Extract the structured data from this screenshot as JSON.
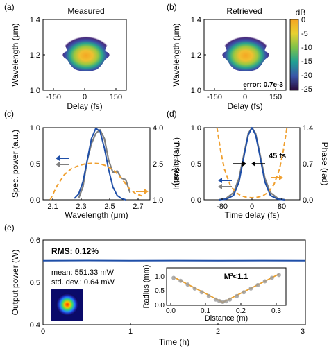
{
  "colors": {
    "blue": "#1f4fa8",
    "gray": "#808080",
    "orange": "#f0a030",
    "orange_line": "#e9a030"
  },
  "chart_data": [
    {
      "panel": "(a)",
      "type": "heatmap",
      "title": "Measured",
      "xlabel": "Delay (fs)",
      "ylabel": "Wavelength (μm)",
      "xlim": [
        -200,
        200
      ],
      "ylim": [
        1.0,
        1.4
      ],
      "xticks": [
        "-150",
        "0",
        "150"
      ],
      "yticks": [
        "1.0",
        "1.2",
        "1.4"
      ]
    },
    {
      "panel": "(b)",
      "type": "heatmap",
      "title": "Retrieved",
      "xlabel": "Delay (fs)",
      "ylabel": "Wavelength (μm)",
      "xlim": [
        -200,
        200
      ],
      "ylim": [
        1.0,
        1.4
      ],
      "xticks": [
        "-150",
        "0",
        "150"
      ],
      "yticks": [
        "1.0",
        "1.2",
        "1.4"
      ],
      "annotation": "error: 0.7e-3",
      "colorbar": {
        "label": "dB",
        "ticks": [
          "0",
          "-5",
          "-10",
          "-15",
          "-20",
          "-25"
        ],
        "range": [
          -25,
          0
        ]
      }
    },
    {
      "panel": "(c)",
      "type": "line",
      "xlabel": "Wavelength (μm)",
      "ylabel": "Spec. power (a.u.)",
      "ylabel_right": "Phase (rad)",
      "xlim": [
        2.0,
        2.75
      ],
      "ylim": [
        0,
        1.0
      ],
      "ylim_right": [
        1.0,
        4.0
      ],
      "xticks": [
        "2.1",
        "2.3",
        "2.5",
        "2.7"
      ],
      "yticks": [
        "0.0",
        "0.5",
        "1.0"
      ],
      "yticks_right": [
        "1.0",
        "2.5",
        "4.0"
      ],
      "series": [
        {
          "color": "gray",
          "axis": "left",
          "x": [
            2.25,
            2.28,
            2.31,
            2.34,
            2.37,
            2.4,
            2.43,
            2.46,
            2.49,
            2.52,
            2.55,
            2.58,
            2.61
          ],
          "y": [
            0.02,
            0.18,
            0.55,
            0.78,
            0.92,
            0.97,
            0.85,
            0.55,
            0.38,
            0.4,
            0.3,
            0.28,
            0.1
          ]
        },
        {
          "color": "blue",
          "axis": "left",
          "x": [
            2.22,
            2.25,
            2.28,
            2.31,
            2.34,
            2.37,
            2.4,
            2.43,
            2.46,
            2.49,
            2.52,
            2.55,
            2.58
          ],
          "y": [
            0.02,
            0.08,
            0.25,
            0.55,
            0.85,
            0.99,
            0.95,
            0.72,
            0.42,
            0.18,
            0.06,
            0.02,
            0.0
          ]
        },
        {
          "color": "orange",
          "axis": "right",
          "dashed": true,
          "x": [
            2.05,
            2.1,
            2.15,
            2.2,
            2.25,
            2.3,
            2.35,
            2.4,
            2.45,
            2.5,
            2.55,
            2.6,
            2.65,
            2.7
          ],
          "y": [
            1.0,
            1.6,
            2.05,
            2.3,
            2.42,
            2.5,
            2.52,
            2.5,
            2.4,
            2.2,
            1.9,
            1.5,
            1.25,
            1.15
          ]
        }
      ]
    },
    {
      "panel": "(d)",
      "type": "line",
      "xlabel": "Time delay (fs)",
      "ylabel": "Intensity (a.u.)",
      "ylabel_right": "Phase (rad)",
      "xlim": [
        -130,
        130
      ],
      "ylim": [
        0,
        1.0
      ],
      "ylim_right": [
        0,
        1.4
      ],
      "xticks": [
        "-80",
        "0",
        "80"
      ],
      "yticks": [
        "0.0",
        "0.5",
        "1.0"
      ],
      "yticks_right": [
        "0.0",
        "0.7",
        "1.4"
      ],
      "annotation": "45 fs",
      "series": [
        {
          "color": "gray",
          "axis": "left",
          "x": [
            -90,
            -70,
            -50,
            -35,
            -20,
            -10,
            0,
            10,
            20,
            35,
            50,
            70,
            90
          ],
          "y": [
            0.0,
            0.02,
            0.1,
            0.3,
            0.68,
            0.92,
            1.0,
            0.92,
            0.68,
            0.3,
            0.1,
            0.02,
            0.0
          ]
        },
        {
          "color": "blue",
          "axis": "left",
          "x": [
            -90,
            -70,
            -50,
            -35,
            -20,
            -10,
            0,
            10,
            20,
            35,
            50,
            70,
            90
          ],
          "y": [
            0.0,
            0.01,
            0.06,
            0.25,
            0.65,
            0.9,
            1.0,
            0.9,
            0.65,
            0.25,
            0.06,
            0.01,
            0.0
          ]
        },
        {
          "color": "orange",
          "axis": "right",
          "dashed": true,
          "x": [
            -95,
            -85,
            -75,
            -60,
            -45,
            -30,
            -15,
            0,
            15,
            30,
            45,
            60,
            75,
            85,
            95
          ],
          "y": [
            1.4,
            0.95,
            0.6,
            0.3,
            0.15,
            0.08,
            0.05,
            0.04,
            0.05,
            0.08,
            0.15,
            0.3,
            0.6,
            0.95,
            1.4
          ]
        }
      ]
    },
    {
      "panel": "(e)",
      "type": "line",
      "xlabel": "Time (h)",
      "ylabel": "Output power (W)",
      "xlim": [
        0,
        3
      ],
      "ylim": [
        0.4,
        0.6
      ],
      "xticks": [
        "0",
        "1",
        "2",
        "3"
      ],
      "yticks": [
        "0.4",
        "0.5",
        "0.6"
      ],
      "annotations": {
        "rms": "RMS: 0.12%",
        "mean": "mean: 551.33 mW",
        "std": "std. dev.: 0.64 mW"
      },
      "series": [
        {
          "color": "blue",
          "x": [
            0,
            0.5,
            1,
            1.5,
            2,
            2.5,
            3
          ],
          "y": [
            0.5513,
            0.5516,
            0.5511,
            0.5514,
            0.5512,
            0.5515,
            0.5513
          ]
        }
      ]
    },
    {
      "panel": "(e) inset",
      "type": "scatter",
      "xlabel": "Distance (m)",
      "ylabel": "Radius (mm)",
      "xlim": [
        -0.02,
        0.32
      ],
      "ylim": [
        0.0,
        1.3
      ],
      "xticks": [
        "0.0",
        "0.1",
        "0.2",
        "0.3"
      ],
      "yticks": [
        "0.0",
        "0.5",
        "1.0"
      ],
      "annotation": "M²<1.1",
      "points": {
        "x": [
          0.0,
          0.02,
          0.04,
          0.06,
          0.08,
          0.1,
          0.12,
          0.13,
          0.14,
          0.15,
          0.16,
          0.18,
          0.2,
          0.22,
          0.24,
          0.26,
          0.28,
          0.3
        ],
        "y": [
          0.95,
          0.85,
          0.72,
          0.58,
          0.45,
          0.32,
          0.2,
          0.15,
          0.12,
          0.14,
          0.2,
          0.32,
          0.45,
          0.58,
          0.7,
          0.83,
          0.95,
          1.05
        ]
      },
      "fit": {
        "x": [
          0.0,
          0.14,
          0.3
        ],
        "y": [
          0.98,
          0.1,
          1.08
        ]
      }
    }
  ]
}
